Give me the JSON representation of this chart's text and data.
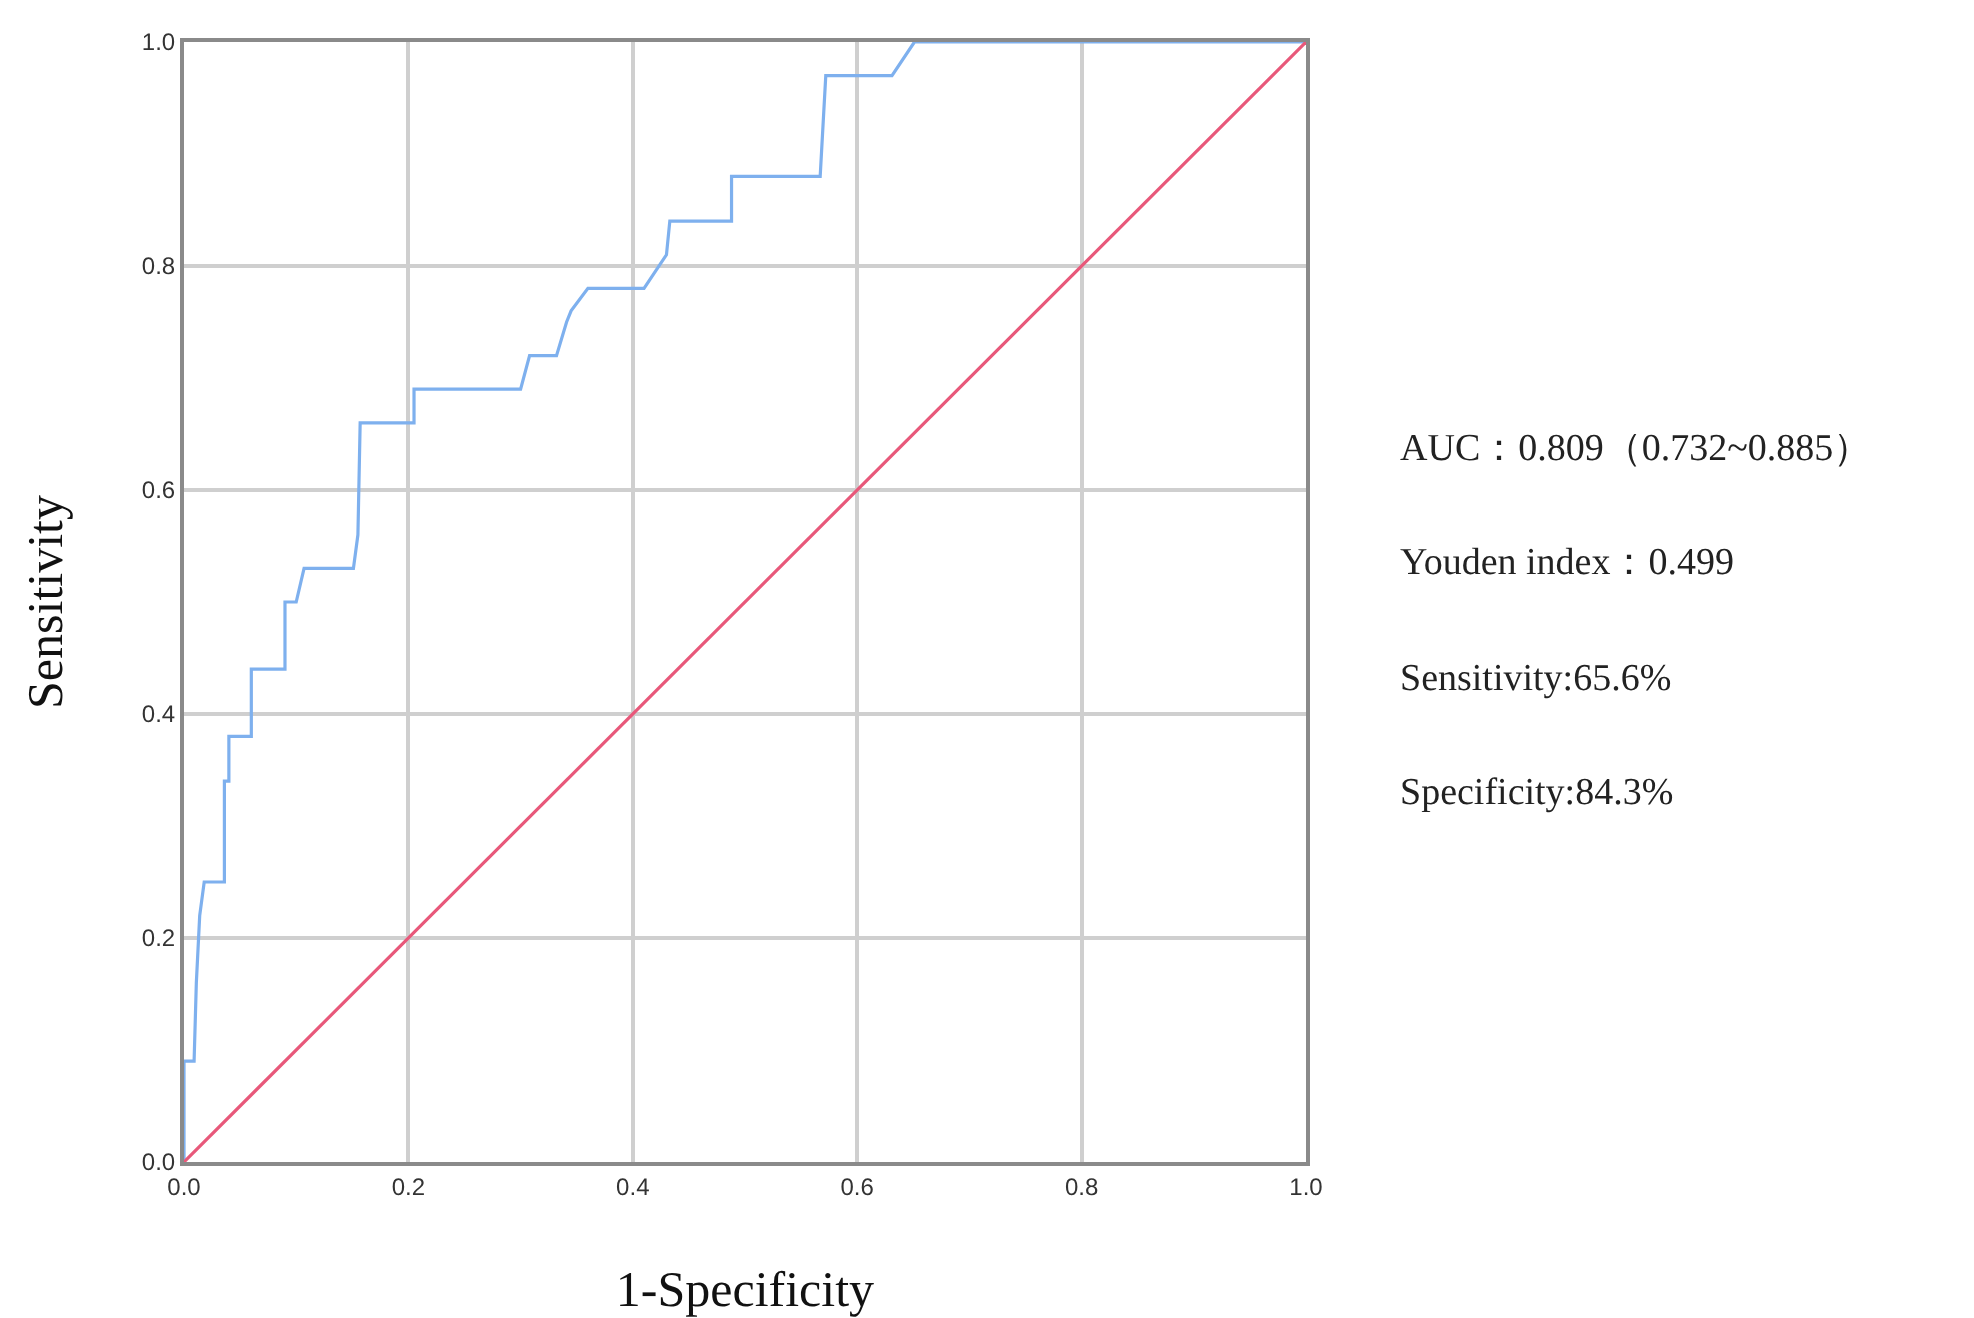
{
  "chart_data": {
    "type": "line",
    "xlabel": "1-Specificity",
    "ylabel": "Sensitivity",
    "series": [
      {
        "color": "#7eb0ee",
        "x": [
          0,
          0,
          0.009,
          0.011,
          0.014,
          0.018,
          0.036,
          0.036,
          0.04,
          0.04,
          0.06,
          0.06,
          0.09,
          0.09,
          0.1,
          0.107,
          0.151,
          0.155,
          0.157,
          0.205,
          0.205,
          0.3,
          0.308,
          0.332,
          0.341,
          0.345,
          0.36,
          0.41,
          0.43,
          0.433,
          0.488,
          0.488,
          0.567,
          0.572,
          0.631,
          0.651,
          1
        ],
        "values": [
          0,
          0.09,
          0.09,
          0.16,
          0.22,
          0.25,
          0.25,
          0.34,
          0.34,
          0.38,
          0.38,
          0.44,
          0.44,
          0.5,
          0.5,
          0.53,
          0.53,
          0.56,
          0.66,
          0.66,
          0.69,
          0.69,
          0.72,
          0.72,
          0.75,
          0.76,
          0.78,
          0.78,
          0.81,
          0.84,
          0.84,
          0.88,
          0.88,
          0.97,
          0.97,
          1,
          1
        ]
      },
      {
        "color": "#e8587a",
        "x": [
          0,
          1
        ],
        "values": [
          0,
          1
        ]
      }
    ],
    "xlim": [
      0,
      1
    ],
    "ylim": [
      0,
      1
    ],
    "xticks": [
      {
        "value": 0,
        "label": "0.0"
      },
      {
        "value": 0.2,
        "label": "0.2"
      },
      {
        "value": 0.4,
        "label": "0.4"
      },
      {
        "value": 0.6,
        "label": "0.6"
      },
      {
        "value": 0.8,
        "label": "0.8"
      },
      {
        "value": 1,
        "label": "1.0"
      }
    ],
    "yticks": [
      {
        "value": 0,
        "label": "0.0"
      },
      {
        "value": 0.2,
        "label": "0.2"
      },
      {
        "value": 0.4,
        "label": "0.4"
      },
      {
        "value": 0.6,
        "label": "0.6"
      },
      {
        "value": 0.8,
        "label": "0.8"
      },
      {
        "value": 1,
        "label": "1.0"
      }
    ],
    "grid": true,
    "marker": "none",
    "line_style": "solid",
    "annotations": [
      "AUC：0.809（0.732~0.885）",
      "Youden index：0.499",
      "Sensitivity:65.6%",
      "Specificity:84.3%"
    ]
  }
}
